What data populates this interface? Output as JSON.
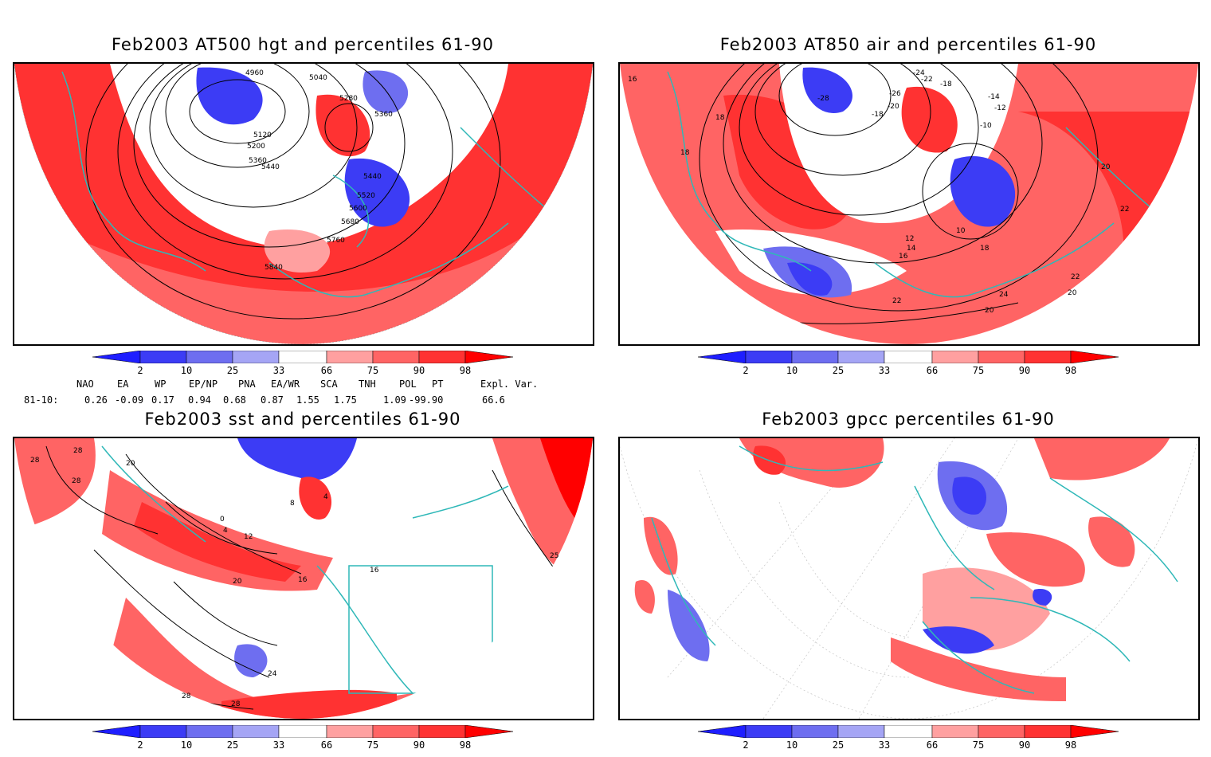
{
  "panels": [
    {
      "title": "Feb2003 AT500 hgt and percentiles 61-90",
      "contour_labels": [
        "4960",
        "5040",
        "5120",
        "5200",
        "5280",
        "5360",
        "5440",
        "5520",
        "5600",
        "5680",
        "5760",
        "5840",
        "5360",
        "5440"
      ]
    },
    {
      "title": "Feb2003 AT850 air and percentiles 61-90",
      "contour_labels": [
        "16",
        "18",
        "18",
        "-28",
        "-24",
        "-22",
        "-26",
        "-20",
        "-18",
        "-18",
        "-14",
        "-12",
        "-10",
        "20",
        "22",
        "22",
        "24",
        "22",
        "20",
        "20",
        "12",
        "14",
        "16",
        "18",
        "10"
      ]
    },
    {
      "title": "Feb2003 sst and percentiles 61-90",
      "contour_labels": [
        "28",
        "28",
        "28",
        "20",
        "0",
        "4",
        "12",
        "16",
        "20",
        "24",
        "28",
        "28",
        "16",
        "4",
        "8",
        "25"
      ]
    },
    {
      "title": "Feb2003 gpcc percentiles 61-90",
      "contour_labels": []
    }
  ],
  "colorbar": {
    "labels": [
      "2",
      "10",
      "25",
      "33",
      "66",
      "75",
      "90",
      "98"
    ],
    "colors": {
      "below": "#1e1eff",
      "b2_10": "#3c3cf5",
      "b10_25": "#6e6ef0",
      "b25_33": "#a5a5f5",
      "a66_75": "#ffa0a0",
      "a75_90": "#ff6464",
      "a90_98": "#ff3232",
      "above": "#ff0000"
    }
  },
  "indices": {
    "headers": [
      "NAO",
      "EA",
      "WP",
      "EP/NP",
      "PNA",
      "EA/WR",
      "SCA",
      "TNH",
      "POL",
      "PT",
      "Expl. Var."
    ],
    "row_label": "81-10:",
    "values": [
      "0.26",
      "-0.09",
      "0.17",
      "0.94",
      "0.68",
      "0.87",
      "1.55",
      "1.75",
      "1.09",
      "-99.90",
      "66.6"
    ]
  },
  "colors": {
    "coast": "#2fb8b8",
    "contour": "#000000"
  }
}
